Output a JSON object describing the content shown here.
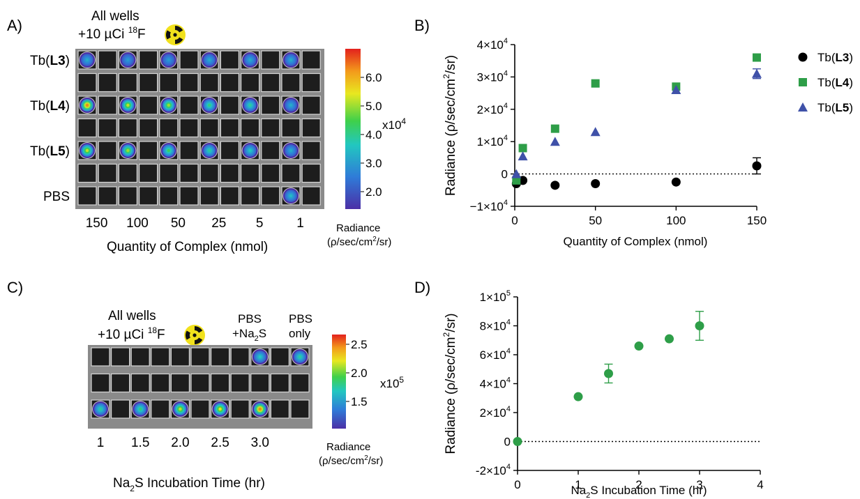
{
  "panels": {
    "A": {
      "label": "A)",
      "header_line1": "All wells",
      "header_line2_prefix": "+10 µCi ",
      "header_isotope_mass": "18",
      "header_isotope_symbol": "F",
      "row_labels": [
        {
          "prefix": "Tb(",
          "bold": "L3",
          "suffix": ")"
        },
        {
          "prefix": "",
          "bold": "",
          "suffix": ""
        },
        {
          "prefix": "Tb(",
          "bold": "L4",
          "suffix": ")"
        },
        {
          "prefix": "",
          "bold": "",
          "suffix": ""
        },
        {
          "prefix": "Tb(",
          "bold": "L5",
          "suffix": ")"
        },
        {
          "prefix": "",
          "bold": "",
          "suffix": ""
        },
        {
          "prefix": "PBS",
          "bold": "",
          "suffix": ""
        }
      ],
      "column_labels": [
        "150",
        "100",
        "50",
        "25",
        "5",
        "1"
      ],
      "xlabel": "Quantity of Complex (nmol)",
      "colorbar": {
        "ticks": [
          "6.0",
          "5.0",
          "4.0",
          "3.0",
          "2.0"
        ],
        "multiplier_base": "x10",
        "multiplier_exp": "4",
        "title_line1": "Radiance",
        "title_line2_a": "(ρ/sec/cm",
        "title_line2_sup": "2",
        "title_line2_b": "/sr)"
      },
      "glowing_wells": [
        {
          "row": 0,
          "col": 0,
          "intensity": 0.3
        },
        {
          "row": 0,
          "col": 2,
          "intensity": 0.25
        },
        {
          "row": 0,
          "col": 4,
          "intensity": 0.25
        },
        {
          "row": 0,
          "col": 6,
          "intensity": 0.3
        },
        {
          "row": 0,
          "col": 8,
          "intensity": 0.3
        },
        {
          "row": 0,
          "col": 10,
          "intensity": 0.3
        },
        {
          "row": 2,
          "col": 0,
          "intensity": 1.0
        },
        {
          "row": 2,
          "col": 2,
          "intensity": 0.75
        },
        {
          "row": 2,
          "col": 4,
          "intensity": 0.7
        },
        {
          "row": 2,
          "col": 6,
          "intensity": 0.5
        },
        {
          "row": 2,
          "col": 8,
          "intensity": 0.45
        },
        {
          "row": 2,
          "col": 10,
          "intensity": 0.3
        },
        {
          "row": 4,
          "col": 0,
          "intensity": 0.75
        },
        {
          "row": 4,
          "col": 2,
          "intensity": 0.7
        },
        {
          "row": 4,
          "col": 4,
          "intensity": 0.55
        },
        {
          "row": 4,
          "col": 6,
          "intensity": 0.45
        },
        {
          "row": 4,
          "col": 8,
          "intensity": 0.4
        },
        {
          "row": 4,
          "col": 10,
          "intensity": 0.3
        },
        {
          "row": 6,
          "col": 10,
          "intensity": 0.35
        }
      ]
    },
    "B": {
      "label": "B)"
    },
    "C": {
      "label": "C)",
      "header_line1": "All wells",
      "header_line2_prefix": "+10 µCi ",
      "header_isotope_mass": "18",
      "header_isotope_symbol": "F",
      "pbs_na2s_line1": "PBS",
      "pbs_na2s_line2_a": "+Na",
      "pbs_na2s_line2_sub": "2",
      "pbs_na2s_line2_b": "S",
      "pbs_only_line1": "PBS",
      "pbs_only_line2": "only",
      "column_labels": [
        "1",
        "1.5",
        "2.0",
        "2.5",
        "3.0"
      ],
      "xlabel_a": "Na",
      "xlabel_sub": "2",
      "xlabel_b": "S Incubation Time (hr)",
      "colorbar": {
        "ticks": [
          "2.5",
          "2.0",
          "1.5"
        ],
        "multiplier_base": "x10",
        "multiplier_exp": "5",
        "title_line1": "Radiance",
        "title_line2_a": "(ρ/sec/cm",
        "title_line2_sup": "2",
        "title_line2_b": "/sr)"
      },
      "glowing_wells": [
        {
          "row": 0,
          "col": 8,
          "intensity": 0.4
        },
        {
          "row": 0,
          "col": 10,
          "intensity": 0.45
        },
        {
          "row": 2,
          "col": 0,
          "intensity": 0.45
        },
        {
          "row": 2,
          "col": 2,
          "intensity": 0.5
        },
        {
          "row": 2,
          "col": 4,
          "intensity": 0.75
        },
        {
          "row": 2,
          "col": 6,
          "intensity": 0.8
        },
        {
          "row": 2,
          "col": 8,
          "intensity": 1.0
        }
      ]
    },
    "D": {
      "label": "D)"
    }
  },
  "chart_data": [
    {
      "panel": "B",
      "type": "scatter",
      "xlabel": "Quantity of Complex (nmol)",
      "ylabel_a": "Radiance (ρ/sec/cm",
      "ylabel_sup": "2",
      "ylabel_b": "/sr)",
      "xlim": [
        0,
        150
      ],
      "ylim": [
        -10000,
        40000
      ],
      "x_ticks": [
        "0",
        "50",
        "100",
        "150"
      ],
      "y_ticks": [
        {
          "value": 40000,
          "mant": "4",
          "exp": "4"
        },
        {
          "value": 30000,
          "mant": "3",
          "exp": "4"
        },
        {
          "value": 20000,
          "mant": "2",
          "exp": "4"
        },
        {
          "value": 10000,
          "mant": "1",
          "exp": "4"
        },
        {
          "value": 0,
          "mant": "0",
          "exp": ""
        },
        {
          "value": -10000,
          "mant": "−1",
          "exp": "4"
        }
      ],
      "zero_line": "dotted",
      "legend_position": "right",
      "series": [
        {
          "name_prefix": "Tb(",
          "name_bold": "L3",
          "name_suffix": ")",
          "marker": "circle",
          "color": "#000000",
          "x": [
            1,
            5,
            25,
            50,
            100,
            150
          ],
          "y": [
            -3000,
            -2000,
            -3500,
            -3000,
            -2500,
            2500
          ],
          "err": [
            0,
            0,
            0,
            0,
            0,
            2500
          ]
        },
        {
          "name_prefix": "Tb(",
          "name_bold": "L4",
          "name_suffix": ")",
          "marker": "square",
          "color": "#2e9e48",
          "x": [
            1,
            5,
            25,
            50,
            100,
            150
          ],
          "y": [
            -2000,
            8000,
            14000,
            28000,
            27000,
            36000
          ],
          "err": [
            0,
            0,
            0,
            0,
            0,
            0
          ]
        },
        {
          "name_prefix": "Tb(",
          "name_bold": "L5",
          "name_suffix": ")",
          "marker": "triangle",
          "color": "#3f51a8",
          "x": [
            1,
            5,
            25,
            50,
            100,
            150
          ],
          "y": [
            0,
            5500,
            10000,
            13000,
            26000,
            31000
          ],
          "err": [
            0,
            0,
            0,
            0,
            0,
            1500
          ]
        }
      ]
    },
    {
      "panel": "D",
      "type": "scatter",
      "xlabel_a": "Na",
      "xlabel_sub": "2",
      "xlabel_b": "S Incubation  Time  (hr)",
      "ylabel_a": "Radiance (ρ/sec/cm",
      "ylabel_sup": "2",
      "ylabel_b": "/sr)",
      "xlim": [
        0,
        4
      ],
      "ylim": [
        -20000,
        100000
      ],
      "x_ticks": [
        "0",
        "1",
        "2",
        "3",
        "4"
      ],
      "y_ticks": [
        {
          "value": 100000,
          "mant": "1",
          "exp": "5"
        },
        {
          "value": 80000,
          "mant": "8",
          "exp": "4"
        },
        {
          "value": 60000,
          "mant": "6",
          "exp": "4"
        },
        {
          "value": 40000,
          "mant": "4",
          "exp": "4"
        },
        {
          "value": 20000,
          "mant": "2",
          "exp": "4"
        },
        {
          "value": 0,
          "mant": "0",
          "exp": ""
        },
        {
          "value": -20000,
          "mant": "-2",
          "exp": "4"
        }
      ],
      "zero_line": "dotted",
      "series": [
        {
          "marker": "circle",
          "color": "#2e9e48",
          "x": [
            0,
            1,
            1.5,
            2,
            2.5,
            3
          ],
          "y": [
            0,
            31000,
            47000,
            66000,
            71000,
            80000
          ],
          "err": [
            0,
            0,
            6500,
            0,
            0,
            10000
          ]
        }
      ]
    }
  ]
}
